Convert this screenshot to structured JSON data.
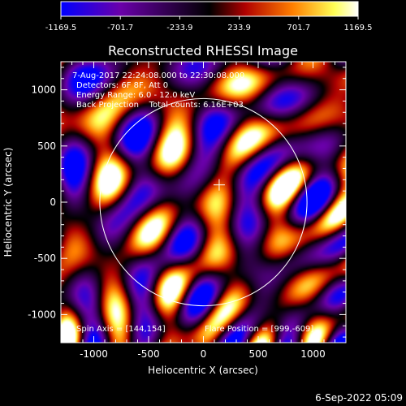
{
  "chart_data": {
    "type": "heatmap",
    "title": "Reconstructed RHESSI Image",
    "xlabel": "Heliocentric X (arcsec)",
    "ylabel": "Heliocentric Y (arcsec)",
    "xlim": [
      -1300,
      1300
    ],
    "ylim": [
      -1250,
      1250
    ],
    "xticks": [
      -1000,
      -500,
      0,
      500,
      1000
    ],
    "yticks": [
      -1000,
      -500,
      0,
      500,
      1000
    ],
    "colorbar": {
      "range": [
        -1169.5,
        1169.5
      ],
      "ticks": [
        "-1169.5",
        "-701.7",
        "-233.9",
        "233.9",
        "701.7",
        "1169.5"
      ],
      "colors": [
        "#0000ff",
        "#6a00aa",
        "#000000",
        "#b00000",
        "#ff7f00",
        "#ffff55",
        "#ffffff"
      ]
    },
    "annotations": [
      "7-Aug-2017 22:24:08.000 to 22:30:08.000",
      "Detectors: 6F 8F, Att 0",
      "Energy Range: 6.0 - 12.0 keV",
      "Back Projection    Total counts: 6.16E+03"
    ],
    "spin_axis": "Spin Axis = [144,154]",
    "flare_position": "Flare Position = [999,-609]",
    "solar_disk": {
      "center": [
        0,
        0
      ],
      "radius": 945
    },
    "map_center": [
      144,
      154
    ],
    "grid": false
  },
  "timestamp": "6-Sep-2022 05:09"
}
